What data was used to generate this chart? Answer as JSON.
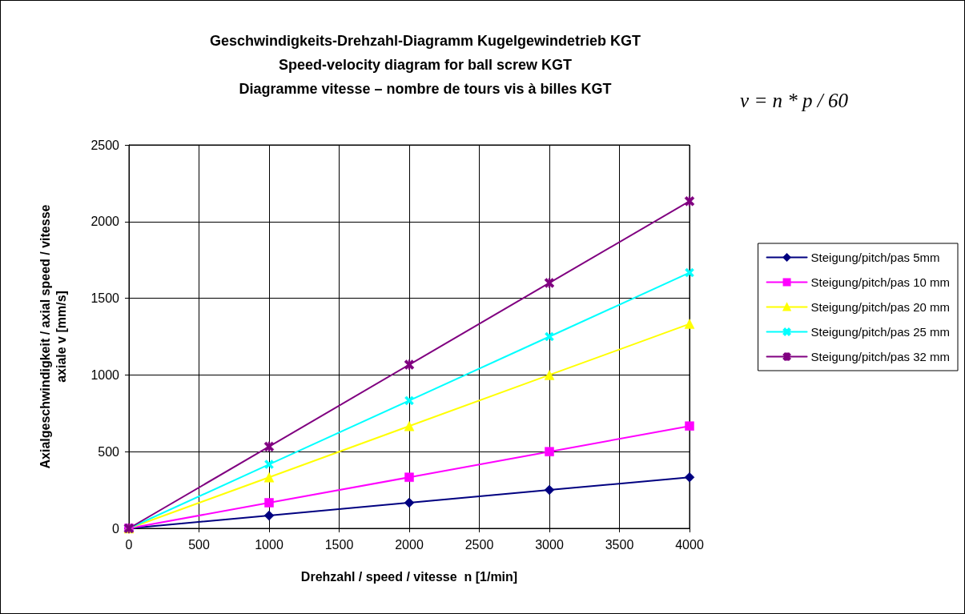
{
  "chart_data": {
    "type": "line",
    "title": "Geschwindigkeits-Drehzahl-Diagramm Kugelgewindetrieb KGT\nSpeed-velocity diagram for ball screw KGT\nDiagramme vitesse – nombre de tours vis à billes KGT",
    "xlabel": "Drehzahl / speed / vitesse  n [1/min]",
    "ylabel": "Axialgeschwindigkeit / axial speed / vitesse\naxiale v [mm/s]",
    "annotations": [
      "v = n * p / 60"
    ],
    "x": [
      0,
      1000,
      2000,
      3000,
      4000
    ],
    "series": [
      {
        "name": "Steigung/pitch/pas 5mm",
        "color": "#000080",
        "marker": "diamond",
        "values": [
          0,
          83,
          167,
          250,
          333
        ]
      },
      {
        "name": "Steigung/pitch/pas 10 mm",
        "color": "#ff00ff",
        "marker": "square",
        "values": [
          0,
          167,
          333,
          500,
          667
        ]
      },
      {
        "name": "Steigung/pitch/pas 20 mm",
        "color": "#ffff00",
        "marker": "triangle",
        "values": [
          0,
          333,
          667,
          1000,
          1333
        ]
      },
      {
        "name": "Steigung/pitch/pas 25 mm",
        "color": "#00ffff",
        "marker": "cross",
        "values": [
          0,
          417,
          833,
          1250,
          1667
        ]
      },
      {
        "name": "Steigung/pitch/pas 32 mm",
        "color": "#800080",
        "marker": "star",
        "values": [
          0,
          533,
          1067,
          1600,
          2133
        ]
      }
    ],
    "xlim": [
      0,
      4000
    ],
    "xticks": [
      0,
      500,
      1000,
      1500,
      2000,
      2500,
      3000,
      3500,
      4000
    ],
    "ylim": [
      0,
      2500
    ],
    "yticks": [
      0,
      500,
      1000,
      1500,
      2000,
      2500
    ],
    "grid": true,
    "legend": "right",
    "line_style": "solid"
  }
}
